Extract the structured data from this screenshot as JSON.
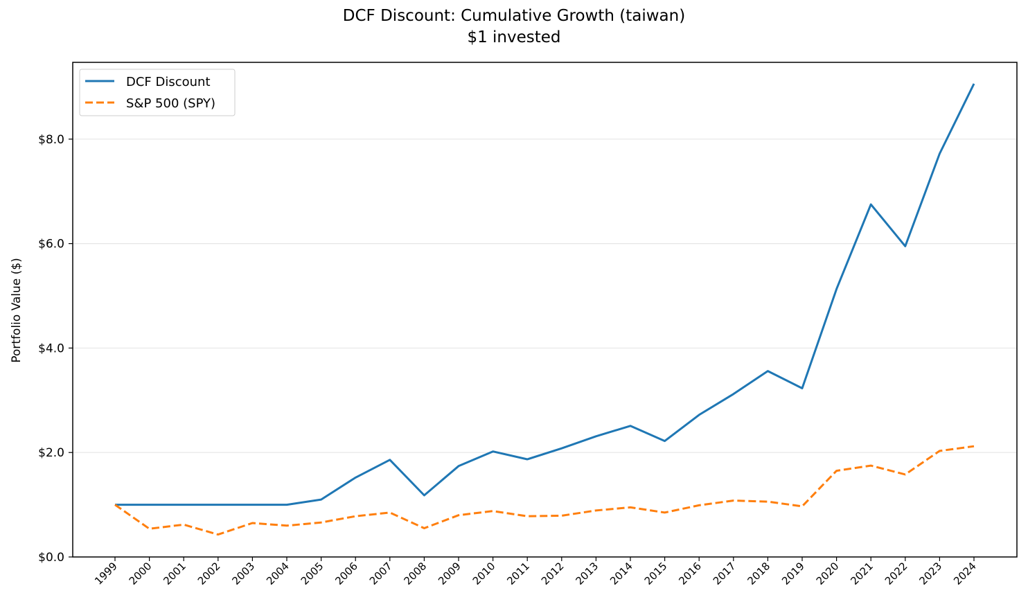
{
  "chart_data": {
    "type": "line",
    "title": "DCF Discount: Cumulative Growth (taiwan)",
    "subtitle": "$1 invested",
    "xlabel": "",
    "ylabel": "Portfolio Value ($)",
    "categories": [
      "1999",
      "2000",
      "2001",
      "2002",
      "2003",
      "2004",
      "2005",
      "2006",
      "2007",
      "2008",
      "2009",
      "2010",
      "2011",
      "2012",
      "2013",
      "2014",
      "2015",
      "2016",
      "2017",
      "2018",
      "2019",
      "2020",
      "2021",
      "2022",
      "2023",
      "2024"
    ],
    "ylim": [
      0,
      9.47
    ],
    "yticks": [
      0,
      2,
      4,
      6,
      8
    ],
    "ytick_labels": [
      "$0.0",
      "$2.0",
      "$4.0",
      "$6.0",
      "$8.0"
    ],
    "grid": "horizontal",
    "legend_position": "top-left",
    "series": [
      {
        "name": "DCF Discount",
        "color": "#1f77b4",
        "style": "solid",
        "values": [
          1.0,
          1.0,
          1.0,
          1.0,
          1.0,
          1.0,
          1.1,
          1.52,
          1.86,
          1.18,
          1.74,
          2.02,
          1.87,
          2.08,
          2.31,
          2.51,
          2.22,
          2.72,
          3.12,
          3.56,
          3.23,
          5.13,
          6.75,
          5.95,
          7.72,
          9.06
        ]
      },
      {
        "name": "S&P 500 (SPY)",
        "color": "#ff7f0e",
        "style": "dashed",
        "values": [
          1.0,
          0.54,
          0.62,
          0.43,
          0.65,
          0.6,
          0.66,
          0.78,
          0.85,
          0.55,
          0.8,
          0.88,
          0.78,
          0.79,
          0.89,
          0.95,
          0.85,
          0.99,
          1.08,
          1.06,
          0.97,
          1.65,
          1.75,
          1.58,
          2.03,
          2.12
        ]
      }
    ]
  }
}
